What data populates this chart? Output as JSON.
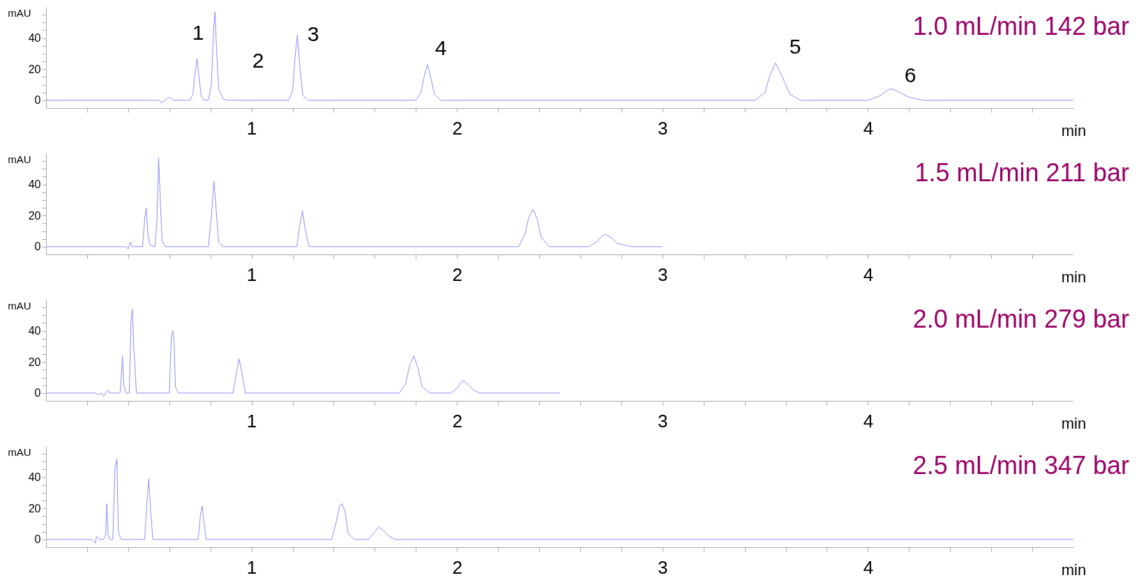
{
  "chart_data": [
    {
      "type": "line",
      "title": "1.0 mL/min  142 bar",
      "xlabel": "min",
      "ylabel": "mAU",
      "grid": false,
      "xlim": [
        0,
        5
      ],
      "ylim": [
        -5,
        60
      ],
      "xticks": [
        {
          "value": 0.2,
          "label": null
        },
        {
          "value": 0.4,
          "label": null
        },
        {
          "value": 0.6,
          "label": null
        },
        {
          "value": 0.8,
          "label": null
        },
        1,
        {
          "value": 1.2,
          "label": null
        },
        {
          "value": 1.4,
          "label": null
        },
        {
          "value": 1.6,
          "label": null
        },
        {
          "value": 1.8,
          "label": null
        },
        2,
        {
          "value": 2.2,
          "label": null
        },
        {
          "value": 2.4,
          "label": null
        },
        {
          "value": 2.6,
          "label": null
        },
        {
          "value": 2.8,
          "label": null
        },
        3,
        {
          "value": 3.2,
          "label": null
        },
        {
          "value": 3.4,
          "label": null
        },
        {
          "value": 3.6,
          "label": null
        },
        {
          "value": 3.8,
          "label": null
        },
        4,
        {
          "value": 4.2,
          "label": null
        },
        {
          "value": 4.4,
          "label": null
        },
        {
          "value": 4.6,
          "label": null
        },
        {
          "value": 4.8,
          "label": null
        }
      ],
      "yticks": [
        0,
        {
          "value": 5,
          "label": null
        },
        {
          "value": 10,
          "label": null
        },
        {
          "value": 15,
          "label": null
        },
        20,
        {
          "value": 25,
          "label": null
        },
        {
          "value": 30,
          "label": null
        },
        {
          "value": 35,
          "label": null
        },
        40,
        {
          "value": 45,
          "label": null
        },
        {
          "value": 50,
          "label": null
        },
        {
          "value": 55,
          "label": null
        }
      ],
      "annotations": [
        "1",
        "2",
        "3",
        "4",
        "5",
        "6"
      ],
      "series": [
        {
          "color": "#8c8cff",
          "x": [
            0,
            0.55,
            0.56,
            0.58,
            0.6,
            0.62,
            0.7,
            0.715,
            0.725,
            0.735,
            0.745,
            0.755,
            0.77,
            0.79,
            0.805,
            0.815,
            0.822,
            0.83,
            0.84,
            0.86,
            0.88,
            1.18,
            1.2,
            1.212,
            1.223,
            1.235,
            1.25,
            1.275,
            1.8,
            1.825,
            1.84,
            1.856,
            1.872,
            1.89,
            1.92,
            3.45,
            3.5,
            3.52,
            3.55,
            3.58,
            3.62,
            3.67,
            4.0,
            4.06,
            4.09,
            4.11,
            4.14,
            4.2,
            4.27,
            5.0
          ],
          "values": [
            0,
            0,
            -1.5,
            0,
            2,
            0,
            0,
            4,
            17,
            27,
            14,
            3,
            0,
            0,
            10,
            45,
            57,
            32,
            8,
            1,
            0,
            0,
            6,
            28,
            42,
            22,
            3,
            0,
            0,
            5,
            15,
            23,
            15,
            4,
            0,
            0,
            5,
            15,
            24,
            16,
            4,
            0,
            0,
            3,
            6,
            7.5,
            6,
            2,
            0,
            0
          ]
        }
      ]
    },
    {
      "type": "line",
      "title": "1.5 mL/min  211 bar",
      "xlabel": "min",
      "ylabel": "mAU",
      "grid": false,
      "xlim": [
        0,
        5
      ],
      "ylim": [
        -5,
        60
      ],
      "xticks": [
        {
          "value": 0.2,
          "label": null
        },
        {
          "value": 0.4,
          "label": null
        },
        {
          "value": 0.6,
          "label": null
        },
        {
          "value": 0.8,
          "label": null
        },
        1,
        {
          "value": 1.2,
          "label": null
        },
        {
          "value": 1.4,
          "label": null
        },
        {
          "value": 1.6,
          "label": null
        },
        {
          "value": 1.8,
          "label": null
        },
        2,
        {
          "value": 2.2,
          "label": null
        },
        {
          "value": 2.4,
          "label": null
        },
        {
          "value": 2.6,
          "label": null
        },
        {
          "value": 2.8,
          "label": null
        },
        3,
        {
          "value": 3.2,
          "label": null
        },
        {
          "value": 3.4,
          "label": null
        },
        {
          "value": 3.6,
          "label": null
        },
        {
          "value": 3.8,
          "label": null
        },
        4,
        {
          "value": 4.2,
          "label": null
        },
        {
          "value": 4.4,
          "label": null
        },
        {
          "value": 4.6,
          "label": null
        },
        {
          "value": 4.8,
          "label": null
        }
      ],
      "yticks": [
        0,
        {
          "value": 5,
          "label": null
        },
        {
          "value": 10,
          "label": null
        },
        {
          "value": 15,
          "label": null
        },
        20,
        {
          "value": 25,
          "label": null
        },
        {
          "value": 30,
          "label": null
        },
        {
          "value": 35,
          "label": null
        },
        40,
        {
          "value": 45,
          "label": null
        },
        {
          "value": 50,
          "label": null
        },
        {
          "value": 55,
          "label": null
        }
      ],
      "series": [
        {
          "color": "#8c8cff",
          "x": [
            0,
            0.39,
            0.4,
            0.41,
            0.42,
            0.47,
            0.48,
            0.488,
            0.496,
            0.505,
            0.53,
            0.54,
            0.548,
            0.556,
            0.565,
            0.58,
            0.79,
            0.805,
            0.817,
            0.828,
            0.84,
            0.86,
            1.22,
            1.235,
            1.248,
            1.26,
            1.28,
            2.3,
            2.33,
            2.35,
            2.37,
            2.39,
            2.41,
            2.45,
            2.64,
            2.68,
            2.7,
            2.72,
            2.75,
            2.78,
            2.85,
            3.0
          ],
          "values": [
            0,
            0,
            -1.5,
            3,
            0,
            0,
            18,
            25,
            8,
            1,
            0,
            18,
            57,
            30,
            4,
            0,
            0,
            20,
            42,
            24,
            3,
            0,
            0,
            14,
            23,
            12,
            0,
            0,
            8,
            19,
            24,
            18,
            6,
            0,
            0,
            3,
            6,
            8,
            6,
            2,
            0,
            0
          ]
        }
      ]
    },
    {
      "type": "line",
      "title": "2.0 mL/min  279 bar",
      "xlabel": "min",
      "ylabel": "mAU",
      "grid": false,
      "xlim": [
        0,
        5
      ],
      "ylim": [
        -5,
        60
      ],
      "xticks": [
        {
          "value": 0.2,
          "label": null
        },
        {
          "value": 0.4,
          "label": null
        },
        {
          "value": 0.6,
          "label": null
        },
        {
          "value": 0.8,
          "label": null
        },
        1,
        {
          "value": 1.2,
          "label": null
        },
        {
          "value": 1.4,
          "label": null
        },
        {
          "value": 1.6,
          "label": null
        },
        {
          "value": 1.8,
          "label": null
        },
        2,
        {
          "value": 2.2,
          "label": null
        },
        {
          "value": 2.4,
          "label": null
        },
        {
          "value": 2.6,
          "label": null
        },
        {
          "value": 2.8,
          "label": null
        },
        3,
        {
          "value": 3.2,
          "label": null
        },
        {
          "value": 3.4,
          "label": null
        },
        {
          "value": 3.6,
          "label": null
        },
        {
          "value": 3.8,
          "label": null
        },
        4,
        {
          "value": 4.2,
          "label": null
        },
        {
          "value": 4.4,
          "label": null
        },
        {
          "value": 4.6,
          "label": null
        },
        {
          "value": 4.8,
          "label": null
        }
      ],
      "yticks": [
        0,
        {
          "value": 5,
          "label": null
        },
        {
          "value": 10,
          "label": null
        },
        {
          "value": 15,
          "label": null
        },
        20,
        {
          "value": 25,
          "label": null
        },
        {
          "value": 30,
          "label": null
        },
        {
          "value": 35,
          "label": null
        },
        40,
        {
          "value": 45,
          "label": null
        },
        {
          "value": 50,
          "label": null
        },
        {
          "value": 55,
          "label": null
        }
      ],
      "series": [
        {
          "color": "#8c8cff",
          "x": [
            0,
            0.24,
            0.25,
            0.27,
            0.28,
            0.3,
            0.31,
            0.32,
            0.36,
            0.366,
            0.372,
            0.378,
            0.39,
            0.405,
            0.413,
            0.42,
            0.427,
            0.44,
            0.6,
            0.61,
            0.617,
            0.623,
            0.63,
            0.645,
            0.91,
            0.925,
            0.939,
            0.952,
            0.97,
            1.72,
            1.75,
            1.77,
            1.79,
            1.81,
            1.83,
            1.87,
            1.97,
            2.0,
            2.02,
            2.033,
            2.05,
            2.08,
            2.11,
            2.5
          ],
          "values": [
            0,
            0,
            -1,
            0,
            -2,
            2,
            0,
            0,
            0,
            10,
            24,
            5,
            0,
            0,
            45,
            54,
            30,
            0,
            0,
            37,
            40,
            32,
            4,
            0,
            0,
            12,
            22,
            14,
            0,
            0,
            6,
            18,
            24,
            16,
            4,
            0,
            0,
            3,
            7,
            8,
            6,
            2,
            0,
            0
          ]
        }
      ]
    },
    {
      "type": "line",
      "title": "2.5 mL/min  347 bar",
      "xlabel": "min",
      "ylabel": "mAU",
      "grid": false,
      "xlim": [
        0,
        5
      ],
      "ylim": [
        -5,
        60
      ],
      "xticks": [
        {
          "value": 0.2,
          "label": null
        },
        {
          "value": 0.4,
          "label": null
        },
        {
          "value": 0.6,
          "label": null
        },
        {
          "value": 0.8,
          "label": null
        },
        1,
        {
          "value": 1.2,
          "label": null
        },
        {
          "value": 1.4,
          "label": null
        },
        {
          "value": 1.6,
          "label": null
        },
        {
          "value": 1.8,
          "label": null
        },
        2,
        {
          "value": 2.2,
          "label": null
        },
        {
          "value": 2.4,
          "label": null
        },
        {
          "value": 2.6,
          "label": null
        },
        {
          "value": 2.8,
          "label": null
        },
        3,
        {
          "value": 3.2,
          "label": null
        },
        {
          "value": 3.4,
          "label": null
        },
        {
          "value": 3.6,
          "label": null
        },
        {
          "value": 3.8,
          "label": null
        },
        4,
        {
          "value": 4.2,
          "label": null
        },
        {
          "value": 4.4,
          "label": null
        },
        {
          "value": 4.6,
          "label": null
        },
        {
          "value": 4.8,
          "label": null
        }
      ],
      "yticks": [
        0,
        {
          "value": 5,
          "label": null
        },
        {
          "value": 10,
          "label": null
        },
        {
          "value": 15,
          "label": null
        },
        20,
        {
          "value": 25,
          "label": null
        },
        {
          "value": 30,
          "label": null
        },
        {
          "value": 35,
          "label": null
        },
        40,
        {
          "value": 45,
          "label": null
        },
        {
          "value": 50,
          "label": null
        },
        {
          "value": 55,
          "label": null
        }
      ],
      "series": [
        {
          "color": "#8c8cff",
          "x": [
            0,
            0.22,
            0.23,
            0.24,
            0.245,
            0.26,
            0.28,
            0.29,
            0.296,
            0.302,
            0.31,
            0.325,
            0.335,
            0.345,
            0.352,
            0.365,
            0.48,
            0.49,
            0.5,
            0.508,
            0.52,
            0.74,
            0.752,
            0.76,
            0.768,
            0.78,
            1.39,
            1.41,
            1.43,
            1.44,
            1.455,
            1.47,
            1.5,
            1.57,
            1.6,
            1.62,
            1.64,
            1.67,
            1.7,
            5.0
          ],
          "values": [
            0,
            0,
            -1,
            -2.5,
            2,
            0,
            0,
            3,
            23,
            3,
            0,
            0,
            45,
            52,
            5,
            0,
            0,
            22,
            39,
            20,
            0,
            0,
            16,
            21.5,
            12,
            0,
            0,
            10,
            22,
            23,
            18,
            4,
            0,
            0,
            5,
            8,
            6,
            2,
            0,
            0
          ]
        }
      ]
    }
  ]
}
